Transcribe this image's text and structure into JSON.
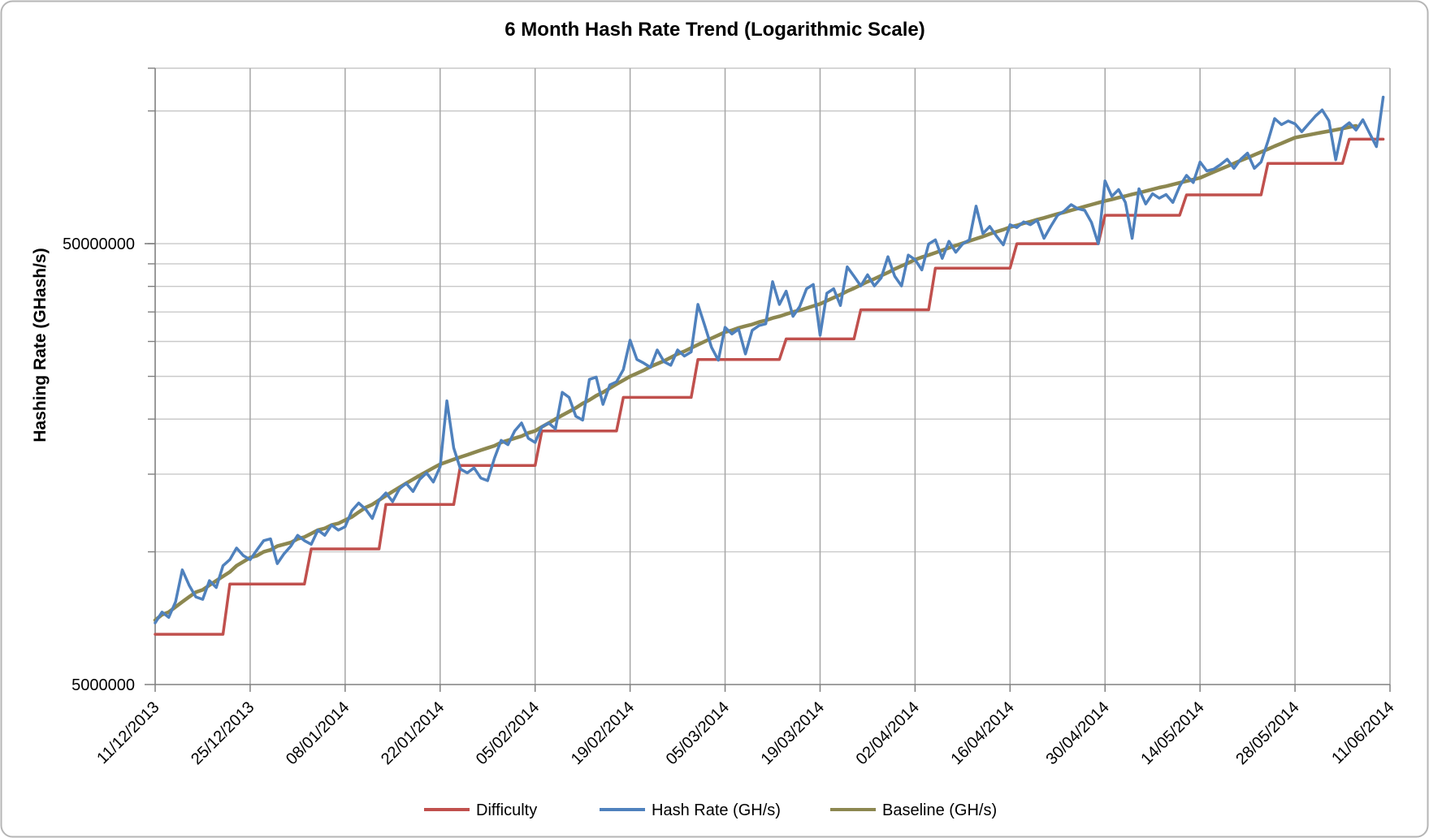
{
  "title": "6 Month Hash Rate Trend (Logarithmic Scale)",
  "y_axis": {
    "title": "Hashing Rate (GHash/s)",
    "scale": "logarithmic",
    "tick_labels": [
      {
        "value": 50000000,
        "label": "50000000"
      },
      {
        "value": 5000000,
        "label": "5000000"
      }
    ],
    "gridline_values_mghs": [
      10,
      15,
      20,
      25,
      30,
      35,
      40,
      45,
      50,
      100
    ],
    "min_ghs": 5000000,
    "max_ghs": 125000000
  },
  "x_axis": {
    "tick_labels": [
      "11/12/2013",
      "25/12/2013",
      "08/01/2014",
      "22/01/2014",
      "05/02/2014",
      "19/02/2014",
      "05/03/2014",
      "19/03/2014",
      "02/04/2014",
      "16/04/2014",
      "30/04/2014",
      "14/05/2014",
      "28/05/2014",
      "11/06/2014"
    ],
    "tick_interval_days": 14,
    "total_days": 182
  },
  "legend": [
    {
      "label": "Difficulty",
      "color": "#C0504D"
    },
    {
      "label": "Hash Rate (GH/s)",
      "color": "#4F81BD"
    },
    {
      "label": "Baseline (GH/s)",
      "color": "#8C8750"
    }
  ],
  "colors": {
    "difficulty": "#C0504D",
    "hash_rate": "#4F81BD",
    "baseline": "#8C8750",
    "h_gridline": "#C9C9C9",
    "v_gridline": "#A6A6A6",
    "axis": "#808080",
    "border": "#B5B5B5"
  },
  "chart_data": {
    "type": "line",
    "title": "6 Month Hash Rate Trend (Logarithmic Scale)",
    "ylabel": "Hashing Rate (GHash/s)",
    "xlabel": "",
    "y_scale": "log",
    "ylim_ghs": [
      5000000,
      125000000
    ],
    "x_unit": "days since 11/12/2013",
    "value_unit": "million GHash/s",
    "grid": "both",
    "legend_position": "bottom",
    "xticks": [
      "11/12/2013",
      "25/12/2013",
      "08/01/2014",
      "22/01/2014",
      "05/02/2014",
      "19/02/2014",
      "05/03/2014",
      "19/03/2014",
      "02/04/2014",
      "16/04/2014",
      "30/04/2014",
      "14/05/2014",
      "28/05/2014",
      "11/06/2014"
    ],
    "series": [
      {
        "name": "Difficulty",
        "style": "step",
        "color": "#C0504D",
        "end_day": 181,
        "steps": [
          {
            "day": 0,
            "value": 6.5
          },
          {
            "day": 10,
            "value": 8.45
          },
          {
            "day": 22,
            "value": 10.15
          },
          {
            "day": 33,
            "value": 12.8
          },
          {
            "day": 44,
            "value": 15.7
          },
          {
            "day": 56,
            "value": 18.8
          },
          {
            "day": 68,
            "value": 22.4
          },
          {
            "day": 79,
            "value": 27.3
          },
          {
            "day": 92,
            "value": 30.4
          },
          {
            "day": 103,
            "value": 35.4
          },
          {
            "day": 114,
            "value": 44.0
          },
          {
            "day": 126,
            "value": 50.0
          },
          {
            "day": 139,
            "value": 58.0
          },
          {
            "day": 151,
            "value": 64.5
          },
          {
            "day": 163,
            "value": 76.0
          },
          {
            "day": 175,
            "value": 86.3
          }
        ]
      },
      {
        "name": "Hash Rate (GH/s)",
        "style": "line",
        "color": "#4F81BD",
        "start_day": 0,
        "daily_values_mghs": [
          6.9,
          7.3,
          7.1,
          7.7,
          9.1,
          8.4,
          7.9,
          7.8,
          8.6,
          8.3,
          9.3,
          9.6,
          10.2,
          9.8,
          9.6,
          10.1,
          10.6,
          10.7,
          9.4,
          9.9,
          10.3,
          10.9,
          10.6,
          10.4,
          11.2,
          10.9,
          11.5,
          11.2,
          11.4,
          12.4,
          12.9,
          12.5,
          11.9,
          13.1,
          13.6,
          13.0,
          13.9,
          14.3,
          13.7,
          14.6,
          15.1,
          14.4,
          15.6,
          22.0,
          17.2,
          15.4,
          15.1,
          15.5,
          14.7,
          14.5,
          16.3,
          17.9,
          17.5,
          18.8,
          19.6,
          18.1,
          17.7,
          19.2,
          19.6,
          19.0,
          23.0,
          22.4,
          20.3,
          19.9,
          24.6,
          24.9,
          21.6,
          23.9,
          24.3,
          25.9,
          30.2,
          27.3,
          26.8,
          26.2,
          28.7,
          27.0,
          26.5,
          28.7,
          27.8,
          28.4,
          36.4,
          32.6,
          29.1,
          27.2,
          32.3,
          31.2,
          32.0,
          28.1,
          31.8,
          32.6,
          32.9,
          41.0,
          36.4,
          39.0,
          34.2,
          36.0,
          39.5,
          40.4,
          31.0,
          38.6,
          39.5,
          36.2,
          44.3,
          42.2,
          40.1,
          42.5,
          40.1,
          41.8,
          46.7,
          42.2,
          40.1,
          47.1,
          46.0,
          43.6,
          49.9,
          51.0,
          46.3,
          50.6,
          47.8,
          49.9,
          51.0,
          60.8,
          52.7,
          54.7,
          52.0,
          49.7,
          55.2,
          54.4,
          56.0,
          55.2,
          56.5,
          51.4,
          54.7,
          58.0,
          59.3,
          61.3,
          60.0,
          59.5,
          55.9,
          50.0,
          69.4,
          64.0,
          66.3,
          62.0,
          51.4,
          66.6,
          61.5,
          64.9,
          63.4,
          64.6,
          62.0,
          67.5,
          71.4,
          68.8,
          76.6,
          73.1,
          73.8,
          75.5,
          77.7,
          74.1,
          77.7,
          80.2,
          74.1,
          76.6,
          85.3,
          96.1,
          93.1,
          94.9,
          93.5,
          89.7,
          93.5,
          97.3,
          100.5,
          95.0,
          77.5,
          91.5,
          94.0,
          90.5,
          95.5,
          89.0,
          83.0,
          107.5
        ]
      },
      {
        "name": "Baseline (GH/s)",
        "style": "line",
        "color": "#8C8750",
        "start_day": 0,
        "daily_values_mghs": [
          7.0,
          7.2,
          7.3,
          7.5,
          7.7,
          7.9,
          8.1,
          8.2,
          8.4,
          8.6,
          8.8,
          9.0,
          9.3,
          9.5,
          9.7,
          9.8,
          10.0,
          10.1,
          10.3,
          10.4,
          10.5,
          10.7,
          10.8,
          11.0,
          11.2,
          11.3,
          11.5,
          11.6,
          11.8,
          12.0,
          12.3,
          12.6,
          12.8,
          13.1,
          13.4,
          13.7,
          14.0,
          14.3,
          14.6,
          14.9,
          15.2,
          15.5,
          15.8,
          16.0,
          16.2,
          16.4,
          16.6,
          16.8,
          17.0,
          17.2,
          17.4,
          17.7,
          17.9,
          18.1,
          18.3,
          18.6,
          18.8,
          19.2,
          19.6,
          20.0,
          20.4,
          20.8,
          21.2,
          21.7,
          22.1,
          22.6,
          23.0,
          23.5,
          24.0,
          24.5,
          25.0,
          25.4,
          25.8,
          26.3,
          26.7,
          27.1,
          27.6,
          28.1,
          28.5,
          29.0,
          29.5,
          30.0,
          30.5,
          31.0,
          31.5,
          31.8,
          32.2,
          32.5,
          32.8,
          33.2,
          33.5,
          33.9,
          34.2,
          34.6,
          35.0,
          35.3,
          35.7,
          36.1,
          36.5,
          37.1,
          37.7,
          38.3,
          39.0,
          39.6,
          40.3,
          41.0,
          41.6,
          42.3,
          43.0,
          43.8,
          44.5,
          45.2,
          46.0,
          46.6,
          47.1,
          47.7,
          48.3,
          48.9,
          49.5,
          50.1,
          50.7,
          51.3,
          51.9,
          52.6,
          53.2,
          53.8,
          54.5,
          55.0,
          55.6,
          56.1,
          56.7,
          57.2,
          57.8,
          58.4,
          58.9,
          59.5,
          60.1,
          60.7,
          61.3,
          61.9,
          62.5,
          63.0,
          63.6,
          64.1,
          64.7,
          65.2,
          65.8,
          66.4,
          67.0,
          67.5,
          68.1,
          68.7,
          69.3,
          69.9,
          70.5,
          71.6,
          72.7,
          73.8,
          74.9,
          76.0,
          77.2,
          78.3,
          79.5,
          80.7,
          81.9,
          83.2,
          84.4,
          85.7,
          87.0,
          87.6,
          88.2,
          88.8,
          89.4,
          90.0,
          90.6,
          91.2,
          91.9,
          92.5
        ]
      }
    ]
  }
}
